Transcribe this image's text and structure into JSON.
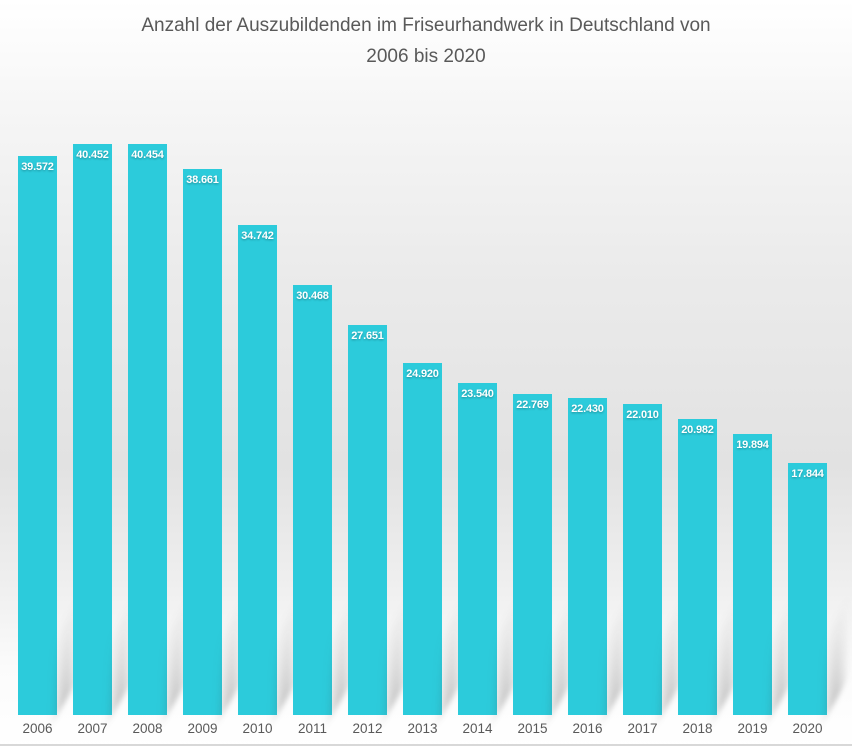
{
  "title": {
    "line1": "Anzahl der Auszubildenden im Friseurhandwerk in Deutschland von",
    "line2": "2006 bis 2020"
  },
  "colors": {
    "bar": "#2ccbdb",
    "title_text": "#595959",
    "axis_text": "#595959",
    "value_label_text": "#ffffff",
    "axis_line": "#d8d8d8"
  },
  "chart_data": {
    "type": "bar",
    "title": "Anzahl der Auszubildenden im Friseurhandwerk in Deutschland von 2006 bis 2020",
    "categories": [
      "2006",
      "2007",
      "2008",
      "2009",
      "2010",
      "2011",
      "2012",
      "2013",
      "2014",
      "2015",
      "2016",
      "2017",
      "2018",
      "2019",
      "2020"
    ],
    "values": [
      39572,
      40452,
      40454,
      38661,
      34742,
      30468,
      27651,
      24920,
      23540,
      22769,
      22430,
      22010,
      20982,
      19894,
      17844
    ],
    "value_labels": [
      "39.572",
      "40.452",
      "40.454",
      "38.661",
      "34.742",
      "30.468",
      "27.651",
      "24.920",
      "23.540",
      "22.769",
      "22.430",
      "22.010",
      "20.982",
      "19.894",
      "17.844"
    ],
    "xlabel": "",
    "ylabel": "",
    "ylim": [
      0,
      40454
    ],
    "grid": false,
    "legend": false,
    "value_labels_position": "inside-top",
    "bar_color": "#2ccbdb"
  }
}
